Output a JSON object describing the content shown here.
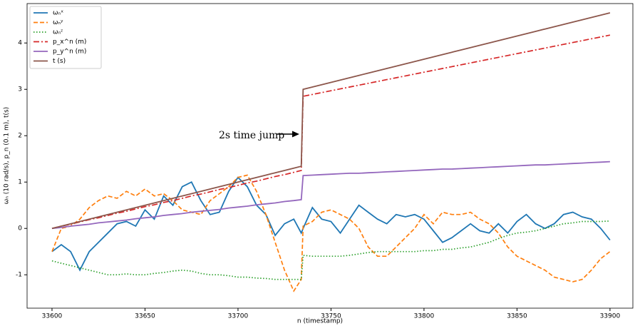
{
  "chart_data": {
    "type": "line",
    "xlabel": "n (timestamp)",
    "ylabel": "ωₙ (10 rad/s), p_n (0.1 m), t(s)",
    "annotation": "2s time jump",
    "x": [
      33600,
      33605,
      33610,
      33615,
      33620,
      33625,
      33630,
      33635,
      33640,
      33645,
      33650,
      33655,
      33660,
      33665,
      33670,
      33675,
      33680,
      33685,
      33690,
      33695,
      33700,
      33705,
      33710,
      33715,
      33720,
      33725,
      33730,
      33734,
      33735,
      33740,
      33745,
      33750,
      33755,
      33760,
      33765,
      33770,
      33775,
      33780,
      33785,
      33790,
      33795,
      33800,
      33805,
      33810,
      33815,
      33820,
      33825,
      33830,
      33835,
      33840,
      33845,
      33850,
      33855,
      33860,
      33865,
      33870,
      33875,
      33880,
      33885,
      33890,
      33895,
      33900
    ],
    "series": [
      {
        "name": "ωₙˣ",
        "color": "#1f77b4",
        "linestyle": "solid",
        "values": [
          -0.5,
          -0.35,
          -0.5,
          -0.9,
          -0.5,
          -0.3,
          -0.1,
          0.1,
          0.15,
          0.05,
          0.4,
          0.2,
          0.7,
          0.5,
          0.9,
          1.0,
          0.6,
          0.3,
          0.35,
          0.8,
          1.1,
          0.9,
          0.5,
          0.3,
          -0.15,
          0.1,
          0.2,
          -0.1,
          0.0,
          0.45,
          0.2,
          0.15,
          -0.1,
          0.2,
          0.5,
          0.35,
          0.2,
          0.1,
          0.3,
          0.25,
          0.3,
          0.2,
          -0.05,
          -0.3,
          -0.2,
          -0.05,
          0.1,
          -0.05,
          -0.1,
          0.1,
          -0.1,
          0.15,
          0.3,
          0.1,
          0.0,
          0.1,
          0.3,
          0.35,
          0.25,
          0.2,
          0.0,
          -0.25
        ]
      },
      {
        "name": "ωₙʸ",
        "color": "#ff7f0e",
        "linestyle": "dashed",
        "values": [
          -0.5,
          0,
          0.05,
          0.2,
          0.45,
          0.6,
          0.7,
          0.65,
          0.8,
          0.7,
          0.85,
          0.7,
          0.75,
          0.6,
          0.4,
          0.35,
          0.3,
          0.6,
          0.75,
          0.9,
          1.1,
          1.15,
          0.8,
          0.3,
          -0.3,
          -0.9,
          -1.35,
          -1.1,
          0.05,
          0.15,
          0.35,
          0.4,
          0.3,
          0.2,
          0,
          -0.4,
          -0.6,
          -0.6,
          -0.4,
          -0.2,
          0,
          0.3,
          0.1,
          0.35,
          0.3,
          0.3,
          0.35,
          0.2,
          0.1,
          -0.1,
          -0.4,
          -0.6,
          -0.7,
          -0.8,
          -0.9,
          -1.05,
          -1.1,
          -1.15,
          -1.1,
          -0.9,
          -0.65,
          -0.5
        ]
      },
      {
        "name": "ωₙᶻ",
        "color": "#2ca02c",
        "linestyle": "dotted",
        "values": [
          -0.7,
          -0.75,
          -0.8,
          -0.85,
          -0.9,
          -0.95,
          -1.0,
          -1.0,
          -0.98,
          -1.0,
          -1.0,
          -0.97,
          -0.95,
          -0.92,
          -0.9,
          -0.92,
          -0.97,
          -1.0,
          -1.0,
          -1.02,
          -1.05,
          -1.05,
          -1.07,
          -1.08,
          -1.1,
          -1.1,
          -1.1,
          -1.1,
          -0.58,
          -0.6,
          -0.6,
          -0.6,
          -0.6,
          -0.58,
          -0.55,
          -0.52,
          -0.5,
          -0.5,
          -0.5,
          -0.5,
          -0.5,
          -0.48,
          -0.48,
          -0.45,
          -0.45,
          -0.42,
          -0.4,
          -0.35,
          -0.3,
          -0.22,
          -0.15,
          -0.1,
          -0.08,
          -0.05,
          0.0,
          0.05,
          0.1,
          0.12,
          0.15,
          0.15,
          0.15,
          0.16
        ]
      },
      {
        "name": "p_x^n (m)",
        "color": "#d62728",
        "linestyle": "dashdot",
        "values": [
          0,
          0.05,
          0.09,
          0.14,
          0.19,
          0.23,
          0.28,
          0.33,
          0.37,
          0.42,
          0.47,
          0.51,
          0.56,
          0.6,
          0.65,
          0.7,
          0.74,
          0.79,
          0.84,
          0.88,
          0.93,
          0.98,
          1.02,
          1.07,
          1.12,
          1.16,
          1.21,
          1.25,
          2.85,
          2.89,
          2.93,
          2.97,
          3.01,
          3.05,
          3.09,
          3.13,
          3.17,
          3.21,
          3.25,
          3.29,
          3.33,
          3.37,
          3.41,
          3.45,
          3.49,
          3.53,
          3.57,
          3.61,
          3.65,
          3.69,
          3.73,
          3.77,
          3.81,
          3.85,
          3.89,
          3.93,
          3.97,
          4.01,
          4.05,
          4.09,
          4.13,
          4.17
        ]
      },
      {
        "name": "p_y^n (m)",
        "color": "#9467bd",
        "linestyle": "solid",
        "values": [
          0,
          0.02,
          0.05,
          0.07,
          0.09,
          0.12,
          0.14,
          0.16,
          0.18,
          0.21,
          0.23,
          0.25,
          0.28,
          0.3,
          0.32,
          0.35,
          0.37,
          0.39,
          0.41,
          0.44,
          0.46,
          0.48,
          0.51,
          0.53,
          0.55,
          0.58,
          0.6,
          0.62,
          1.14,
          1.15,
          1.16,
          1.17,
          1.18,
          1.19,
          1.19,
          1.2,
          1.21,
          1.22,
          1.23,
          1.24,
          1.25,
          1.26,
          1.27,
          1.28,
          1.28,
          1.29,
          1.3,
          1.31,
          1.32,
          1.33,
          1.34,
          1.35,
          1.36,
          1.37,
          1.37,
          1.38,
          1.39,
          1.4,
          1.41,
          1.42,
          1.43,
          1.44
        ]
      },
      {
        "name": "t (s)",
        "color": "#8c564b",
        "linestyle": "solid",
        "values": [
          0,
          0.05,
          0.1,
          0.15,
          0.2,
          0.25,
          0.3,
          0.35,
          0.4,
          0.45,
          0.5,
          0.55,
          0.6,
          0.65,
          0.7,
          0.75,
          0.8,
          0.85,
          0.9,
          0.95,
          1.0,
          1.05,
          1.1,
          1.15,
          1.2,
          1.25,
          1.3,
          1.34,
          3.0,
          3.05,
          3.1,
          3.15,
          3.2,
          3.25,
          3.3,
          3.35,
          3.4,
          3.45,
          3.5,
          3.55,
          3.6,
          3.65,
          3.7,
          3.75,
          3.8,
          3.85,
          3.9,
          3.95,
          4.0,
          4.05,
          4.1,
          4.15,
          4.2,
          4.25,
          4.3,
          4.35,
          4.4,
          4.45,
          4.5,
          4.55,
          4.6,
          4.65
        ]
      }
    ],
    "xlim": [
      33586.6,
      33912.3
    ],
    "xticks": [
      33600,
      33650,
      33700,
      33750,
      33800,
      33850,
      33900
    ],
    "ylim": [
      -1.72,
      4.85
    ],
    "yticks": [
      -1,
      0,
      1,
      2,
      3,
      4
    ],
    "grid": false,
    "legend": "upper left"
  }
}
